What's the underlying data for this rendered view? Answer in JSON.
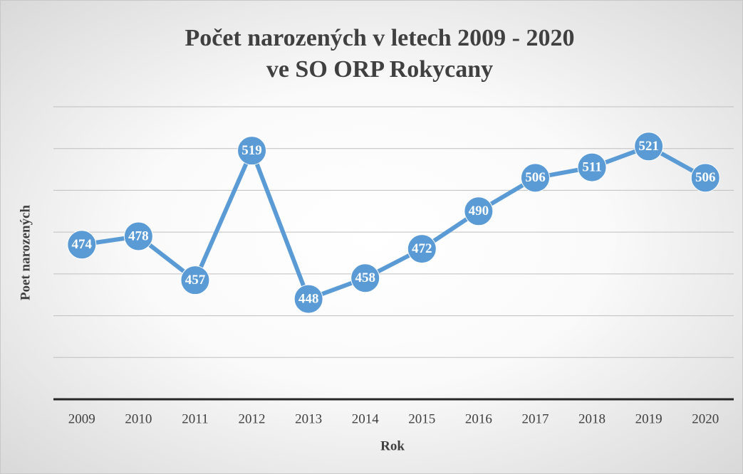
{
  "chart_data": {
    "type": "line",
    "title": [
      "Počet narozených v letech 2009 - 2020",
      "ve SO ORP Rokycany"
    ],
    "x_label": "Rok",
    "y_label": "Poet narozených",
    "categories": [
      "2009",
      "2010",
      "2011",
      "2012",
      "2013",
      "2014",
      "2015",
      "2016",
      "2017",
      "2018",
      "2019",
      "2020"
    ],
    "values": [
      474,
      478,
      457,
      519,
      448,
      458,
      472,
      490,
      506,
      511,
      521,
      506
    ],
    "color": "#5b9bd5",
    "ylim": [
      400,
      540
    ],
    "yticks": [
      400,
      420,
      440,
      460,
      480,
      500,
      520,
      540
    ],
    "grid": true
  }
}
